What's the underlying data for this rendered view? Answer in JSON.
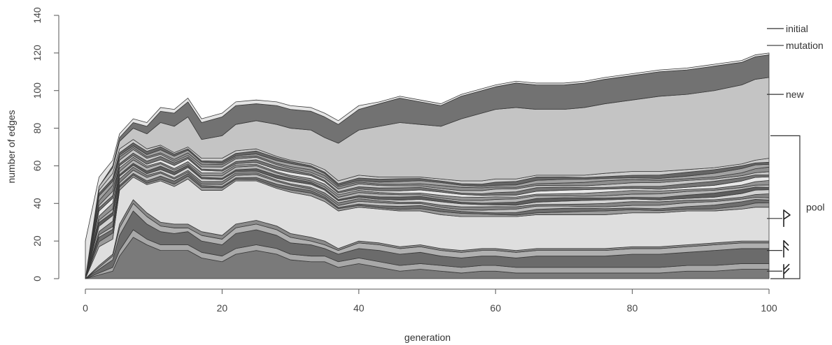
{
  "chart_data": {
    "type": "area",
    "stacked": true,
    "xlabel": "generation",
    "ylabel": "number of edges",
    "xlim": [
      0,
      100
    ],
    "ylim": [
      0,
      140
    ],
    "xticks": [
      0,
      20,
      40,
      60,
      80,
      100
    ],
    "yticks": [
      0,
      20,
      40,
      60,
      80,
      100,
      120,
      140
    ],
    "grid": false,
    "x": [
      0,
      2,
      4,
      5,
      7,
      9,
      11,
      13,
      15,
      17,
      20,
      22,
      25,
      28,
      30,
      33,
      35,
      37,
      40,
      43,
      46,
      49,
      52,
      55,
      58,
      60,
      63,
      66,
      70,
      73,
      76,
      80,
      84,
      88,
      92,
      96,
      98,
      100
    ],
    "bottom_layers": [
      {
        "color": "#7a7a7a",
        "values": [
          0,
          2,
          4,
          12,
          22,
          18,
          15,
          15,
          15,
          11,
          9,
          13,
          15,
          13,
          10,
          9,
          9,
          6,
          8,
          6,
          4,
          5,
          4,
          3,
          4,
          4,
          3,
          3,
          3,
          3,
          3,
          3,
          3,
          4,
          4,
          5,
          5,
          5
        ]
      },
      {
        "color": "#a8a8a8",
        "values": [
          0,
          1,
          2,
          3,
          4,
          3,
          3,
          3,
          3,
          3,
          3,
          3,
          3,
          3,
          3,
          3,
          3,
          3,
          3,
          3,
          3,
          3,
          3,
          3,
          3,
          3,
          3,
          3,
          3,
          3,
          3,
          3,
          3,
          3,
          3,
          3,
          3,
          3
        ]
      },
      {
        "color": "#6b6b6b",
        "values": [
          0,
          2,
          4,
          8,
          10,
          8,
          7,
          6,
          7,
          6,
          6,
          8,
          8,
          7,
          6,
          6,
          4,
          4,
          5,
          6,
          6,
          6,
          5,
          5,
          5,
          5,
          5,
          6,
          6,
          6,
          6,
          7,
          7,
          7,
          8,
          8,
          8,
          8
        ]
      },
      {
        "color": "#b0b0b0",
        "values": [
          0,
          1,
          2,
          4,
          4,
          4,
          3,
          3,
          2,
          3,
          3,
          3,
          3,
          3,
          3,
          2,
          2,
          2,
          3,
          3,
          3,
          3,
          3,
          3,
          3,
          3,
          3,
          3,
          3,
          3,
          3,
          3,
          3,
          3,
          3,
          3,
          3,
          3
        ]
      },
      {
        "color": "#8a8a8a",
        "values": [
          0,
          1,
          1,
          2,
          2,
          2,
          2,
          2,
          2,
          2,
          2,
          2,
          2,
          2,
          2,
          2,
          2,
          1,
          1,
          1,
          1,
          1,
          1,
          1,
          1,
          1,
          1,
          1,
          1,
          1,
          1,
          1,
          1,
          1,
          1,
          1,
          1,
          1
        ]
      },
      {
        "color": "#dedede",
        "values": [
          0,
          10,
          8,
          18,
          12,
          15,
          22,
          20,
          24,
          22,
          24,
          23,
          21,
          20,
          22,
          22,
          21,
          20,
          18,
          18,
          19,
          18,
          18,
          18,
          17,
          17,
          18,
          18,
          18,
          18,
          18,
          18,
          18,
          18,
          17,
          17,
          18,
          18
        ]
      }
    ],
    "pool_layers": {
      "colors": [
        "#9a9a9a",
        "#6e6e6e",
        "#bdbdbd",
        "#848484",
        "#d2d2d2",
        "#5e5e5e",
        "#b4b4b4",
        "#939393",
        "#e8e8e8",
        "#747474",
        "#c6c6c6",
        "#8e8e8e",
        "#a2a2a2",
        "#666666",
        "#cccccc"
      ],
      "totals": [
        0,
        30,
        35,
        22,
        20,
        19,
        19,
        18,
        17,
        17,
        17,
        16,
        17,
        17,
        17,
        17,
        17,
        16,
        17,
        17,
        18,
        18,
        19,
        19,
        19,
        20,
        20,
        21,
        21,
        21,
        22,
        22,
        22,
        22,
        23,
        24,
        25,
        26
      ]
    },
    "new": {
      "color": "#c4c4c4",
      "values": [
        0,
        2,
        3,
        4,
        6,
        8,
        12,
        14,
        16,
        10,
        12,
        14,
        15,
        17,
        17,
        18,
        17,
        20,
        24,
        27,
        29,
        28,
        28,
        33,
        36,
        37,
        38,
        35,
        35,
        36,
        37,
        38,
        40,
        40,
        41,
        42,
        43,
        43
      ]
    },
    "mutation": {
      "color": "#727272",
      "values": [
        0,
        0,
        1,
        2,
        3,
        4,
        6,
        7,
        8,
        9,
        10,
        10,
        9,
        10,
        10,
        10,
        11,
        10,
        11,
        12,
        13,
        12,
        11,
        12,
        12,
        12,
        13,
        13,
        13,
        13,
        13,
        13,
        13,
        13,
        13,
        12,
        12,
        12
      ]
    },
    "initial": {
      "color": "#e4e4e4",
      "values": [
        20,
        5,
        3,
        2,
        2,
        2,
        2,
        2,
        2,
        2,
        2,
        2,
        2,
        2,
        2,
        2,
        2,
        2,
        2,
        1,
        1,
        1,
        1,
        1,
        1,
        1,
        1,
        1,
        1,
        1,
        1,
        1,
        1,
        1,
        1,
        1,
        1,
        1
      ]
    },
    "annotations": [
      {
        "label": "initial",
        "y": 133
      },
      {
        "label": "mutation",
        "y": 124
      },
      {
        "label": "new",
        "y": 98
      },
      {
        "label": "pool",
        "y_from": 0,
        "y_to": 76
      }
    ],
    "glyph_markers": [
      {
        "icon": "flag-glyph",
        "y": 32
      },
      {
        "icon": "double-flag-glyph",
        "y": 15
      },
      {
        "icon": "double-flag-glyph-alt",
        "y": 4
      }
    ]
  }
}
